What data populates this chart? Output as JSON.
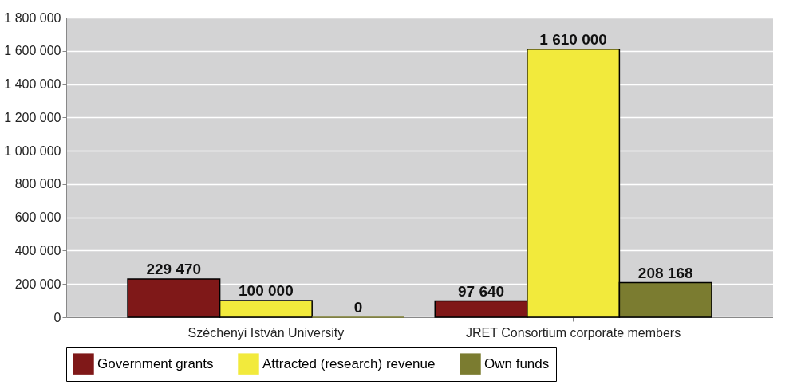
{
  "chart_data": {
    "type": "bar",
    "categories": [
      "Széchenyi István University",
      "JRET Consortium corporate members"
    ],
    "series": [
      {
        "name": "Government grants",
        "color": "#7f1818",
        "values": [
          229470,
          97640
        ]
      },
      {
        "name": "Attracted (research) revenue",
        "color": "#f2ea3c",
        "values": [
          100000,
          1610000
        ]
      },
      {
        "name": "Own funds",
        "color": "#7b7c30",
        "values": [
          0,
          208168
        ]
      }
    ],
    "ylim": [
      0,
      1800000
    ],
    "yticks": [
      0,
      {
        "value": 200000,
        "label": "200 000"
      },
      {
        "value": 400000,
        "label": "400 000"
      },
      {
        "value": 600000,
        "label": "600 000"
      },
      {
        "value": 800000,
        "label": "800 000"
      },
      {
        "value": 1000000,
        "label": "1 000 000"
      },
      {
        "value": 1200000,
        "label": "1 200 000"
      },
      {
        "value": 1400000,
        "label": "1 400 000"
      },
      {
        "value": 1600000,
        "label": "1 600 000"
      },
      {
        "value": 1800000,
        "label": "1 800 000"
      }
    ],
    "grid": "y",
    "legend": "bottom",
    "data_labels": true
  }
}
